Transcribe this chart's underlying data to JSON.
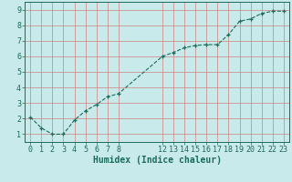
{
  "x": [
    0,
    1,
    2,
    3,
    4,
    5,
    6,
    7,
    8,
    12,
    13,
    14,
    15,
    16,
    17,
    18,
    19,
    20,
    21,
    22,
    23
  ],
  "y": [
    2.1,
    1.4,
    1.0,
    1.0,
    1.9,
    2.5,
    2.9,
    3.4,
    3.6,
    6.0,
    6.25,
    6.55,
    6.7,
    6.75,
    6.75,
    7.4,
    8.25,
    8.4,
    8.75,
    8.9,
    8.9
  ],
  "line_color": "#1a6b5a",
  "marker_color": "#1a6b5a",
  "bg_color": "#c8eaea",
  "grid_color": "#d08080",
  "axis_bg": "#c8eaea",
  "xlabel": "Humidex (Indice chaleur)",
  "xticks": [
    0,
    1,
    2,
    3,
    4,
    5,
    6,
    7,
    8,
    12,
    13,
    14,
    15,
    16,
    17,
    18,
    19,
    20,
    21,
    22,
    23
  ],
  "yticks": [
    1,
    2,
    3,
    4,
    5,
    6,
    7,
    8,
    9
  ],
  "xlim": [
    -0.5,
    23.5
  ],
  "ylim": [
    0.5,
    9.5
  ],
  "font_color": "#1a6b5a",
  "tick_labelsize": 6.0,
  "xlabel_fontsize": 7.0
}
